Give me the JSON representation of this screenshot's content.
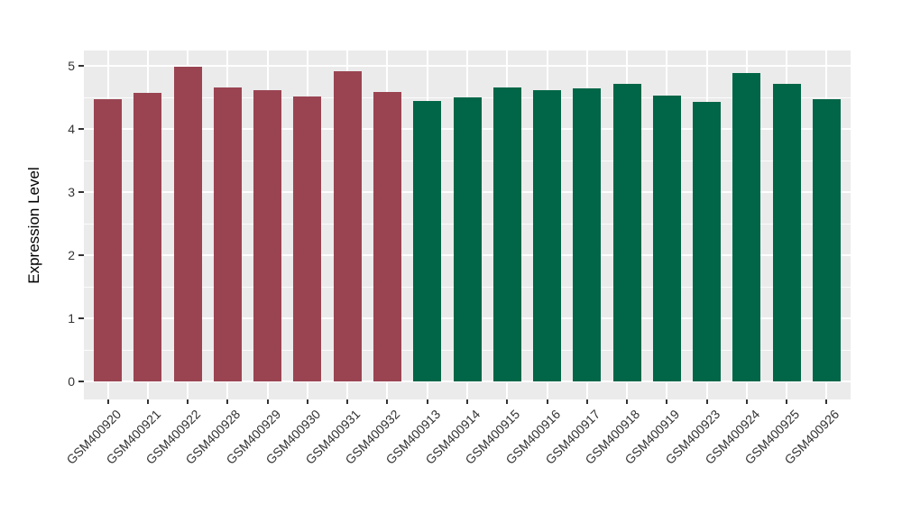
{
  "theme": {
    "background": "#ffffff",
    "panel_background": "#ebebeb",
    "grid_color": "#ffffff",
    "axis_text_color": "#333333",
    "axis_title_color": "#000000",
    "tick_color": "#333333"
  },
  "chart_data": {
    "type": "bar",
    "title": "",
    "xlabel": "",
    "ylabel": "Expression Level",
    "categories": [
      "GSM400920",
      "GSM400921",
      "GSM400922",
      "GSM400928",
      "GSM400929",
      "GSM400930",
      "GSM400931",
      "GSM400932",
      "GSM400913",
      "GSM400914",
      "GSM400915",
      "GSM400916",
      "GSM400917",
      "GSM400918",
      "GSM400919",
      "GSM400923",
      "GSM400924",
      "GSM400925",
      "GSM400926"
    ],
    "values": [
      4.47,
      4.57,
      4.98,
      4.66,
      4.62,
      4.51,
      4.91,
      4.59,
      4.45,
      4.5,
      4.66,
      4.61,
      4.64,
      4.71,
      4.53,
      4.43,
      4.89,
      4.71,
      4.47
    ],
    "bar_groups": [
      "group1",
      "group1",
      "group1",
      "group1",
      "group1",
      "group1",
      "group1",
      "group1",
      "group2",
      "group2",
      "group2",
      "group2",
      "group2",
      "group2",
      "group2",
      "group2",
      "group2",
      "group2",
      "group2"
    ],
    "group_colors": {
      "group1": "#9a4452",
      "group2": "#006647"
    },
    "yticks": [
      0,
      1,
      2,
      3,
      4,
      5
    ],
    "yticks_minor": [
      0.5,
      1.5,
      2.5,
      3.5,
      4.5
    ],
    "ylim": [
      -0.29,
      5.24
    ],
    "grid": {
      "horizontal_major": true,
      "horizontal_minor": true,
      "vertical_major": true
    },
    "legend_position": "none"
  }
}
